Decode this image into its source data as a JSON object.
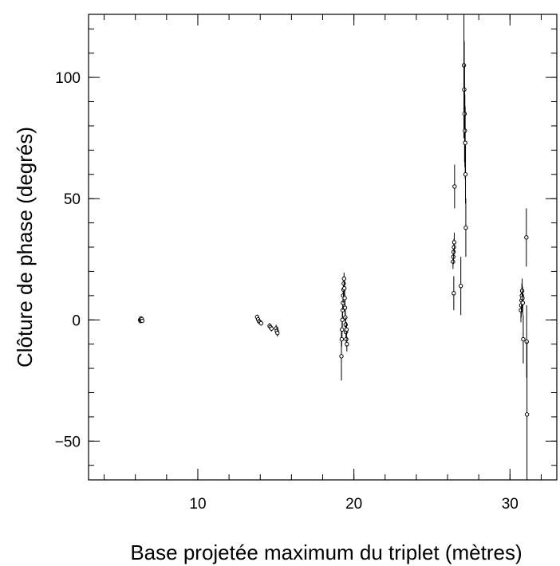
{
  "chart_data": {
    "type": "scatter",
    "title": "",
    "xlabel": "Base projetée maximum du triplet (mètres)",
    "ylabel": "Clôture de phase (degrés)",
    "xlim": [
      3,
      33
    ],
    "ylim": [
      -66,
      126
    ],
    "x_ticks": [
      10,
      20,
      30
    ],
    "y_ticks": [
      -50,
      0,
      50,
      100
    ],
    "x_tick_labels": [
      "10",
      "20",
      "30"
    ],
    "y_tick_labels": [
      "−50",
      "0",
      "50",
      "100"
    ],
    "x_minor_step": 2,
    "y_minor_step": 10,
    "grid": false,
    "legend": "none",
    "colors": {
      "marker": "#000000",
      "errorbar": "#000000",
      "frame": "#000000"
    },
    "points": [
      {
        "x": 6.3,
        "y": 0.0,
        "err": 0.8
      },
      {
        "x": 6.33,
        "y": -0.5,
        "err": 0.8
      },
      {
        "x": 6.36,
        "y": 0.6,
        "err": 0.8
      },
      {
        "x": 6.38,
        "y": -0.2,
        "err": 0.8
      },
      {
        "x": 6.41,
        "y": 0.3,
        "err": 0.8
      },
      {
        "x": 6.44,
        "y": -0.4,
        "err": 0.8
      },
      {
        "x": 13.8,
        "y": 1.2,
        "err": 1.0
      },
      {
        "x": 13.86,
        "y": 0.2,
        "err": 1.0
      },
      {
        "x": 13.92,
        "y": -0.6,
        "err": 1.0
      },
      {
        "x": 14.0,
        "y": -1.0,
        "err": 1.0
      },
      {
        "x": 14.06,
        "y": -1.4,
        "err": 1.0
      },
      {
        "x": 14.6,
        "y": -2.5,
        "err": 1.2
      },
      {
        "x": 14.66,
        "y": -3.0,
        "err": 1.2
      },
      {
        "x": 14.72,
        "y": -3.6,
        "err": 1.2
      },
      {
        "x": 15.02,
        "y": -3.5,
        "err": 1.5
      },
      {
        "x": 15.06,
        "y": -4.6,
        "err": 1.5
      },
      {
        "x": 15.1,
        "y": -5.4,
        "err": 1.5
      },
      {
        "x": 19.2,
        "y": -15.0,
        "err": 10.0
      },
      {
        "x": 19.22,
        "y": -8.0,
        "err": 3.0
      },
      {
        "x": 19.24,
        "y": -4.0,
        "err": 3.0
      },
      {
        "x": 19.26,
        "y": 0.0,
        "err": 3.0
      },
      {
        "x": 19.28,
        "y": 4.0,
        "err": 3.0
      },
      {
        "x": 19.3,
        "y": 7.0,
        "err": 3.0
      },
      {
        "x": 19.31,
        "y": 10.0,
        "err": 3.0
      },
      {
        "x": 19.33,
        "y": 12.5,
        "err": 3.0
      },
      {
        "x": 19.35,
        "y": 15.0,
        "err": 3.0
      },
      {
        "x": 19.37,
        "y": 17.0,
        "err": 2.5
      },
      {
        "x": 19.39,
        "y": 13.0,
        "err": 3.0
      },
      {
        "x": 19.41,
        "y": 9.0,
        "err": 3.0
      },
      {
        "x": 19.43,
        "y": 5.0,
        "err": 3.0
      },
      {
        "x": 19.45,
        "y": 1.0,
        "err": 3.0
      },
      {
        "x": 19.47,
        "y": -2.0,
        "err": 3.0
      },
      {
        "x": 19.49,
        "y": -5.0,
        "err": 3.0
      },
      {
        "x": 19.51,
        "y": -8.0,
        "err": 3.0
      },
      {
        "x": 19.53,
        "y": -4.0,
        "err": 3.0
      },
      {
        "x": 19.55,
        "y": -10.0,
        "err": 3.0
      },
      {
        "x": 26.35,
        "y": 24.0,
        "err": 3.0
      },
      {
        "x": 26.37,
        "y": 26.0,
        "err": 3.0
      },
      {
        "x": 26.39,
        "y": 28.0,
        "err": 3.0
      },
      {
        "x": 26.41,
        "y": 30.0,
        "err": 3.5
      },
      {
        "x": 26.43,
        "y": 32.0,
        "err": 4.0
      },
      {
        "x": 26.45,
        "y": 55.0,
        "err": 9.0
      },
      {
        "x": 26.4,
        "y": 11.0,
        "err": 7.0
      },
      {
        "x": 26.85,
        "y": 14.0,
        "err": 12.0
      },
      {
        "x": 27.05,
        "y": 105.0,
        "err": 30.0
      },
      {
        "x": 27.07,
        "y": 95.0,
        "err": 20.0
      },
      {
        "x": 27.09,
        "y": 85.0,
        "err": 20.0
      },
      {
        "x": 27.11,
        "y": 78.0,
        "err": 15.0
      },
      {
        "x": 27.13,
        "y": 73.0,
        "err": 15.0
      },
      {
        "x": 27.15,
        "y": 60.0,
        "err": 12.0
      },
      {
        "x": 27.17,
        "y": 38.0,
        "err": 12.0
      },
      {
        "x": 30.7,
        "y": 4.0,
        "err": 5.0
      },
      {
        "x": 30.72,
        "y": 6.0,
        "err": 5.0
      },
      {
        "x": 30.74,
        "y": 8.0,
        "err": 5.0
      },
      {
        "x": 30.76,
        "y": 10.0,
        "err": 5.0
      },
      {
        "x": 30.78,
        "y": 12.0,
        "err": 5.0
      },
      {
        "x": 30.8,
        "y": 9.0,
        "err": 5.0
      },
      {
        "x": 30.82,
        "y": 7.0,
        "err": 5.0
      },
      {
        "x": 30.85,
        "y": -8.0,
        "err": 10.0
      },
      {
        "x": 31.05,
        "y": 34.0,
        "err": 12.0
      },
      {
        "x": 31.07,
        "y": -9.0,
        "err": 15.0
      },
      {
        "x": 31.09,
        "y": -39.0,
        "err": 30.0
      }
    ]
  }
}
